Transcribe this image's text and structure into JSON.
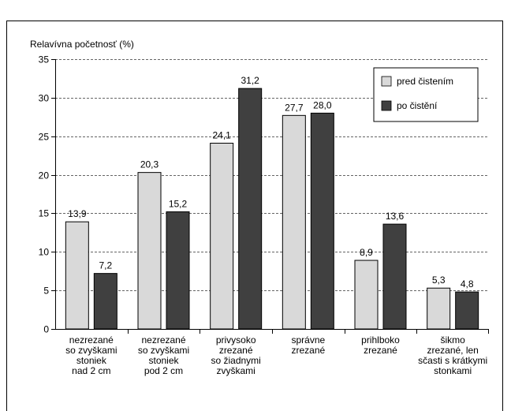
{
  "chart_data": {
    "type": "bar",
    "ylabel": "Relavívna početnosť  (%)",
    "ylim": [
      0,
      35
    ],
    "yticks": [
      0,
      5,
      10,
      15,
      20,
      25,
      30,
      35
    ],
    "grid": "horizontal dashed",
    "legend_position": "top-right",
    "categories": [
      [
        "nezrezané",
        "so zvyškami",
        "stoniek",
        "nad 2 cm"
      ],
      [
        "nezrezané",
        "so zvyškami",
        "stoniek",
        "pod 2 cm"
      ],
      [
        "privysoko",
        "zrezané",
        "so žiadnymi",
        "zvyškami"
      ],
      [
        "správne",
        "zrezané"
      ],
      [
        "prihlboko",
        "zrezané"
      ],
      [
        "šikmo",
        "zrezané, len",
        "sčasti s krátkymi",
        "stonkami"
      ]
    ],
    "series": [
      {
        "name": "pred čistením",
        "color": "#d9d9d9",
        "values": [
          13.9,
          20.3,
          24.1,
          27.7,
          8.9,
          5.3
        ],
        "labels": [
          "13,9",
          "20,3",
          "24,1",
          "27,7",
          "8,9",
          "5,3"
        ]
      },
      {
        "name": "po čistění",
        "color": "#404040",
        "values": [
          7.2,
          15.2,
          31.2,
          28.0,
          13.6,
          4.8
        ],
        "labels": [
          "7,2",
          "15,2",
          "31,2",
          "28,0",
          "13,6",
          "4,8"
        ]
      }
    ]
  }
}
